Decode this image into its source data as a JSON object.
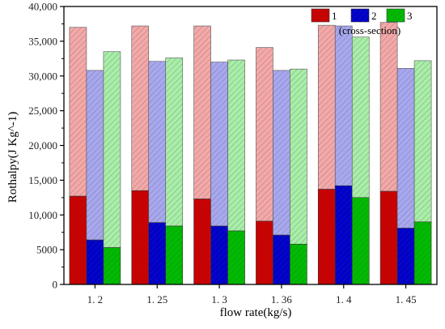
{
  "chart_data": {
    "type": "bar",
    "stacked": true,
    "title": "",
    "xlabel": "flow rate(kg/s)",
    "ylabel": "Rothalpy(J Kg^-1)",
    "categories": [
      "1. 2",
      "1. 25",
      "1. 3",
      "1. 36",
      "1. 4",
      "1. 45"
    ],
    "ylim": [
      0,
      40000
    ],
    "yticks": [
      0,
      5000,
      10000,
      15000,
      20000,
      25000,
      30000,
      35000,
      40000
    ],
    "ytick_labels": [
      "0",
      "5000",
      "10,000",
      "15,000",
      "20,000",
      "25,000",
      "30,000",
      "35,000",
      "40,000"
    ],
    "legend_position": "top-right",
    "legend_note": "(cross-section)",
    "series": [
      {
        "name": "1",
        "lower": [
          12700,
          13500,
          12300,
          9100,
          13700,
          13400
        ],
        "total": [
          37000,
          37200,
          37200,
          34100,
          37300,
          37700
        ]
      },
      {
        "name": "2",
        "lower": [
          6400,
          8900,
          8400,
          7100,
          14200,
          8100
        ],
        "total": [
          30800,
          32100,
          32000,
          30800,
          37200,
          31100
        ]
      },
      {
        "name": "3",
        "lower": [
          5300,
          8400,
          7700,
          5800,
          12500,
          9000
        ],
        "total": [
          33500,
          32600,
          32300,
          31000,
          35600,
          32200
        ]
      }
    ],
    "colors": {
      "series_solid": [
        "#cc0000",
        "#0000cc",
        "#00bb00"
      ],
      "series_light": [
        "#f4a8a8",
        "#a8a8f0",
        "#a8eea8"
      ],
      "hatch": "#444444"
    },
    "grid": false
  }
}
